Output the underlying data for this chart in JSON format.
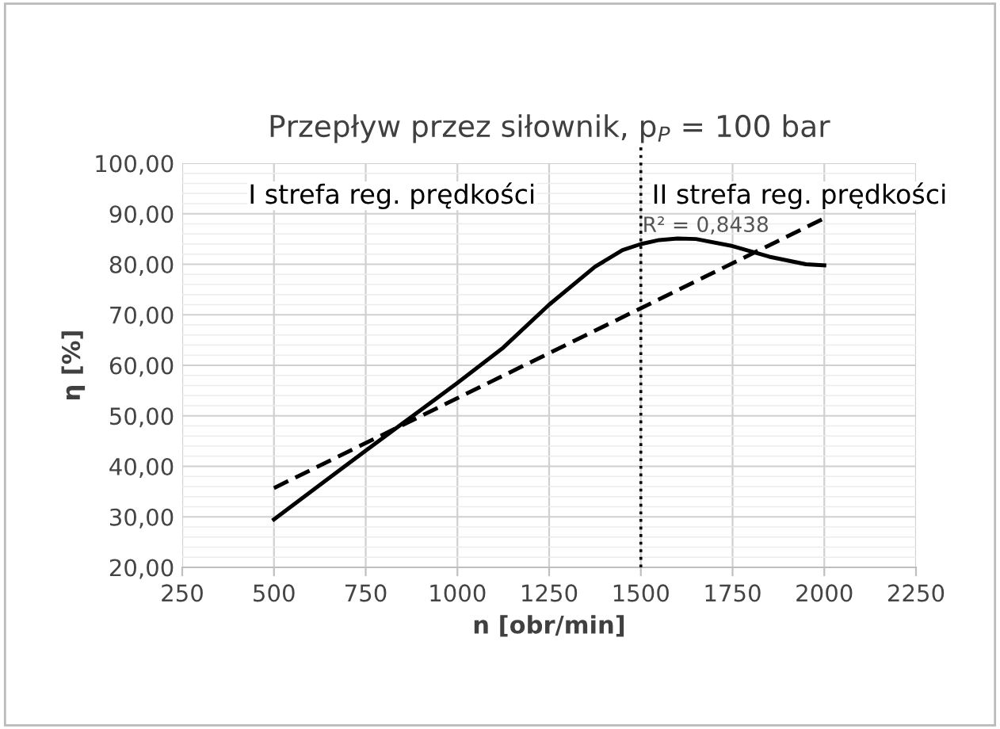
{
  "chart_data": {
    "type": "line",
    "title": "Przepływ przez siłownik, p$_{P}$ = 100 bar",
    "xlabel": "n [obr/min]",
    "ylabel": "η [%]",
    "series": [
      {
        "color": "#000000",
        "line_style": "solid",
        "x": [
          500,
          625,
          750,
          875,
          1000,
          1125,
          1250,
          1375,
          1450,
          1500,
          1550,
          1600,
          1650,
          1750,
          1850,
          1950,
          2000
        ],
        "values": [
          29.5,
          36.3,
          43.1,
          49.8,
          56.5,
          63.5,
          72.0,
          79.5,
          82.8,
          84.0,
          84.8,
          85.1,
          85.0,
          83.6,
          81.5,
          80.0,
          79.8
        ]
      },
      {
        "color": "#000000",
        "line_style": "dashed",
        "x": [
          500,
          2000
        ],
        "values": [
          35.7,
          89.1
        ]
      }
    ],
    "xlim": [
      250,
      2250
    ],
    "xticks": [
      250,
      500,
      750,
      1000,
      1250,
      1500,
      1750,
      2000,
      2250
    ],
    "ylim": [
      20,
      100
    ],
    "yticks": [
      {
        "value": 20,
        "label": "20,00"
      },
      {
        "value": 30,
        "label": "30,00"
      },
      {
        "value": 40,
        "label": "40,00"
      },
      {
        "value": 50,
        "label": "50,00"
      },
      {
        "value": 60,
        "label": "60,00"
      },
      {
        "value": 70,
        "label": "70,00"
      },
      {
        "value": 80,
        "label": "80,00"
      },
      {
        "value": 90,
        "label": "90,00"
      },
      {
        "value": 100,
        "label": "100,00"
      }
    ],
    "ref_lines": [
      {
        "axis": "x",
        "value": 1500,
        "color": "#000000",
        "line_style": "dotted"
      }
    ],
    "annotations": [
      "I strefa reg. prędkości",
      "II strefa reg. prędkości",
      "R² = 0,8438"
    ],
    "grid": true,
    "legend": false,
    "marker": "none"
  }
}
